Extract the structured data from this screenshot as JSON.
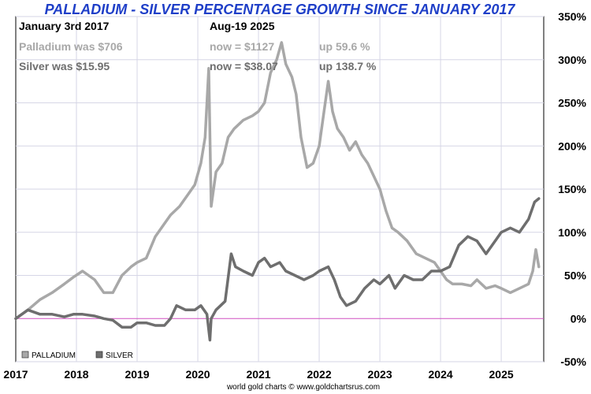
{
  "chart_data": {
    "type": "line",
    "title": "PALLADIUM - SILVER PERCENTAGE GROWTH SINCE JANUARY 2017",
    "xlabel": "",
    "ylabel": "",
    "x_ticks": [
      "2017",
      "2018",
      "2019",
      "2020",
      "2021",
      "2022",
      "2023",
      "2024",
      "2025"
    ],
    "y_ticks": [
      "350%",
      "300%",
      "250%",
      "200%",
      "150%",
      "100%",
      "50%",
      "0%",
      "-50%"
    ],
    "ylim": [
      -50,
      350
    ],
    "xlim": [
      2017.0,
      2025.7
    ],
    "y_axis_side": "right",
    "grid": true,
    "legend_position": "bottom-left",
    "reference_line": {
      "y": 0,
      "color": "#d050c0"
    },
    "series": [
      {
        "name": "PALLADIUM",
        "color": "#a8a8a8",
        "x": [
          2017.0,
          2017.2,
          2017.4,
          2017.6,
          2017.8,
          2017.95,
          2018.1,
          2018.3,
          2018.45,
          2018.6,
          2018.75,
          2018.9,
          2019.0,
          2019.15,
          2019.3,
          2019.45,
          2019.55,
          2019.7,
          2019.85,
          2019.95,
          2020.05,
          2020.12,
          2020.18,
          2020.22,
          2020.3,
          2020.4,
          2020.5,
          2020.6,
          2020.75,
          2020.9,
          2021.0,
          2021.1,
          2021.2,
          2021.3,
          2021.38,
          2021.45,
          2021.55,
          2021.62,
          2021.7,
          2021.8,
          2021.9,
          2022.0,
          2022.08,
          2022.15,
          2022.22,
          2022.3,
          2022.4,
          2022.5,
          2022.6,
          2022.7,
          2022.8,
          2022.9,
          2023.0,
          2023.1,
          2023.2,
          2023.3,
          2023.45,
          2023.6,
          2023.75,
          2023.9,
          2024.0,
          2024.1,
          2024.2,
          2024.35,
          2024.5,
          2024.6,
          2024.75,
          2024.9,
          2025.0,
          2025.15,
          2025.3,
          2025.45,
          2025.52,
          2025.57,
          2025.62
        ],
        "y": [
          0,
          10,
          22,
          30,
          40,
          48,
          55,
          45,
          30,
          30,
          50,
          60,
          65,
          70,
          95,
          110,
          120,
          130,
          145,
          155,
          180,
          210,
          290,
          130,
          170,
          180,
          210,
          220,
          230,
          235,
          240,
          250,
          285,
          300,
          320,
          295,
          280,
          260,
          210,
          175,
          180,
          200,
          240,
          275,
          240,
          220,
          210,
          195,
          205,
          190,
          180,
          165,
          150,
          125,
          105,
          100,
          90,
          75,
          70,
          65,
          55,
          45,
          40,
          40,
          38,
          45,
          35,
          38,
          35,
          30,
          35,
          40,
          55,
          80,
          60
        ]
      },
      {
        "name": "SILVER",
        "color": "#6e6e6e",
        "x": [
          2017.0,
          2017.2,
          2017.4,
          2017.6,
          2017.8,
          2017.95,
          2018.1,
          2018.3,
          2018.45,
          2018.6,
          2018.75,
          2018.9,
          2019.0,
          2019.15,
          2019.3,
          2019.45,
          2019.55,
          2019.65,
          2019.8,
          2019.95,
          2020.05,
          2020.15,
          2020.2,
          2020.22,
          2020.3,
          2020.45,
          2020.55,
          2020.62,
          2020.75,
          2020.9,
          2021.0,
          2021.1,
          2021.2,
          2021.35,
          2021.45,
          2021.6,
          2021.75,
          2021.9,
          2022.0,
          2022.15,
          2022.25,
          2022.35,
          2022.45,
          2022.6,
          2022.75,
          2022.9,
          2023.0,
          2023.15,
          2023.25,
          2023.4,
          2023.55,
          2023.7,
          2023.85,
          2024.0,
          2024.15,
          2024.3,
          2024.45,
          2024.6,
          2024.75,
          2024.9,
          2025.0,
          2025.15,
          2025.3,
          2025.45,
          2025.55,
          2025.62
        ],
        "y": [
          0,
          10,
          5,
          5,
          2,
          5,
          5,
          3,
          0,
          -2,
          -10,
          -10,
          -5,
          -5,
          -8,
          -8,
          0,
          15,
          10,
          10,
          15,
          5,
          -25,
          0,
          10,
          20,
          75,
          60,
          55,
          50,
          65,
          70,
          60,
          65,
          55,
          50,
          45,
          50,
          55,
          60,
          45,
          25,
          15,
          20,
          35,
          45,
          40,
          50,
          35,
          50,
          45,
          45,
          55,
          55,
          60,
          85,
          95,
          90,
          75,
          90,
          100,
          105,
          100,
          115,
          135,
          139
        ]
      }
    ]
  },
  "header": {
    "date_label": "January 3rd 2017",
    "current_date": "Aug-19  2025"
  },
  "palladium_info": {
    "start": "Palladium was $706",
    "now": "now = $1127",
    "growth": "up 59.6 %"
  },
  "silver_info": {
    "start": "Silver was $15.95",
    "now": "now = $38.07",
    "growth": "up 138.7 %"
  },
  "legend": {
    "items": [
      {
        "label": "PALLADIUM",
        "color": "#a8a8a8"
      },
      {
        "label": "SILVER",
        "color": "#6e6e6e"
      }
    ]
  },
  "footer": {
    "credit": "world gold charts © www.goldchartsrus.com"
  }
}
